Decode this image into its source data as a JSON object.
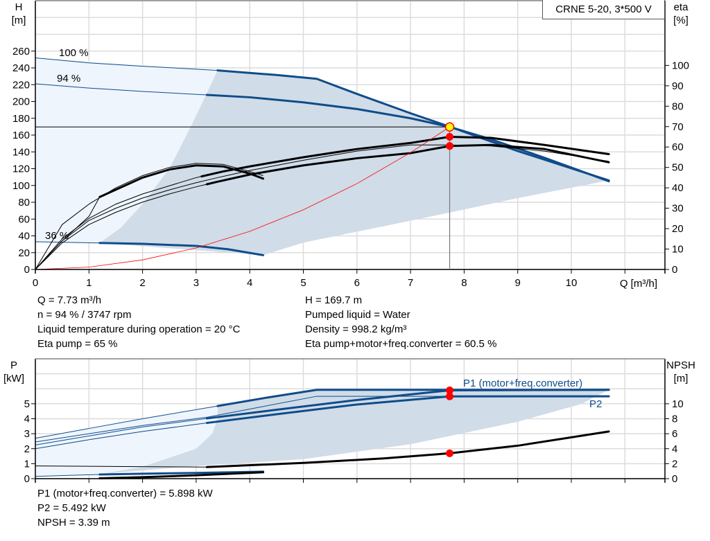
{
  "title": "CRNE 5-20, 3*500 V",
  "colors": {
    "pump_curve": "#0f4c8a",
    "efficiency_curve": "#000000",
    "system_curve": "#ff0000",
    "operating_area": "#d0dce8",
    "extended_area": "#eef5fd",
    "duty_point_fill": "#ffff00",
    "grid": "#dcdcdc"
  },
  "readouts_upper": {
    "q": "Q = 7.73 m³/h",
    "n": "n = 94 % / 3747 rpm",
    "temp": "Liquid temperature during operation = 20 °C",
    "eta_pump": "Eta pump = 65 %",
    "h": "H = 169.7 m",
    "liquid": "Pumped liquid = Water",
    "density": "Density = 998.2 kg/m³",
    "eta_total": "Eta pump+motor+freq.converter = 60.5 %"
  },
  "readouts_lower": {
    "p1": "P1 (motor+freq.converter) = 5.898 kW",
    "p2": "P2 = 5.492 kW",
    "npsh": "NPSH = 3.39 m"
  },
  "chart_data": [
    {
      "type": "line",
      "xlabel": "Q [m³/h]",
      "ylabel": "H\n[m]",
      "y2label": "eta\n[%]",
      "xlim": [
        0,
        11.75
      ],
      "ylim": [
        0,
        320
      ],
      "y2lim": [
        0,
        131.7
      ],
      "x_ticks": [
        "0",
        "1",
        "2",
        "3",
        "4",
        "5",
        "6",
        "7",
        "8",
        "9",
        "10"
      ],
      "y_ticks": [
        "0",
        "20",
        "40",
        "60",
        "80",
        "100",
        "120",
        "140",
        "160",
        "180",
        "200",
        "220",
        "240",
        "260"
      ],
      "y2_ticks": [
        "0",
        "10",
        "20",
        "30",
        "40",
        "50",
        "60",
        "70",
        "80",
        "90",
        "100"
      ],
      "grid": true,
      "speed_labels": [
        "100 %",
        "94 %",
        "36 %"
      ],
      "series": [
        {
          "name": "100 %",
          "axis": "H",
          "kind": "pump",
          "points": [
            [
              0,
              252
            ],
            [
              1,
              246
            ],
            [
              2,
              242
            ],
            [
              3,
              238.5
            ],
            [
              3.4,
              237
            ],
            [
              4.5,
              231.5
            ],
            [
              5.25,
              227
            ],
            [
              6,
              209
            ],
            [
              7,
              186
            ],
            [
              7.73,
              170
            ],
            [
              9,
              141
            ],
            [
              10.7,
              106
            ]
          ],
          "thick_from": 3.4
        },
        {
          "name": "94 %",
          "axis": "H",
          "kind": "pump",
          "points": [
            [
              0,
              221
            ],
            [
              1,
              216
            ],
            [
              2,
              212
            ],
            [
              3,
              208.5
            ],
            [
              4,
              205
            ],
            [
              5,
              199
            ],
            [
              6,
              191
            ],
            [
              7,
              180
            ],
            [
              7.73,
              169.7
            ],
            [
              8.5,
              155
            ],
            [
              9.5,
              133
            ],
            [
              10.7,
              105
            ]
          ],
          "thick_from": 3.2
        },
        {
          "name": "36 %",
          "axis": "H",
          "kind": "pump",
          "points": [
            [
              0,
              33
            ],
            [
              1.2,
              31.5
            ],
            [
              2,
              30.5
            ],
            [
              3,
              28
            ],
            [
              3.6,
              24
            ],
            [
              4.25,
              17
            ]
          ],
          "thick_from": 1.2
        },
        {
          "axis": "eta",
          "kind": "eta",
          "points": [
            [
              0,
              0
            ],
            [
              0.5,
              22
            ],
            [
              1,
              32
            ],
            [
              1.5,
              40
            ],
            [
              2,
              46
            ],
            [
              2.5,
              50
            ],
            [
              3,
              52
            ],
            [
              3.5,
              51.5
            ],
            [
              4,
              48
            ],
            [
              4.25,
              46
            ]
          ],
          "thick_from": 99
        },
        {
          "axis": "eta",
          "kind": "eta",
          "points": [
            [
              0,
              0
            ],
            [
              0.5,
              14
            ],
            [
              1,
              26
            ],
            [
              1.2,
              35.5
            ],
            [
              2,
              45
            ],
            [
              2.5,
              49
            ],
            [
              3,
              51
            ],
            [
              3.5,
              50.5
            ],
            [
              4,
              47
            ],
            [
              4.25,
              44.5
            ]
          ],
          "thick_from": 1.2
        },
        {
          "axis": "eta",
          "kind": "eta",
          "points": [
            [
              0,
              0
            ],
            [
              0.5,
              13
            ],
            [
              1,
              22
            ],
            [
              1.5,
              28
            ],
            [
              2,
              33
            ],
            [
              2.5,
              37
            ],
            [
              3,
              40.5
            ],
            [
              3.4,
              43
            ],
            [
              4,
              46.5
            ],
            [
              5,
              51
            ],
            [
              6,
              54.5
            ],
            [
              7,
              57
            ],
            [
              7.73,
              60.5
            ],
            [
              8.5,
              61
            ],
            [
              9.5,
              59
            ],
            [
              10.7,
              52.5
            ]
          ],
          "thick_from": 3.2
        },
        {
          "axis": "eta",
          "kind": "eta",
          "points": [
            [
              0,
              0
            ],
            [
              0.5,
              14
            ],
            [
              1,
              24
            ],
            [
              1.5,
              30
            ],
            [
              2,
              35
            ],
            [
              2.5,
              39
            ],
            [
              3,
              42.5
            ],
            [
              3.4,
              45
            ],
            [
              4,
              48.5
            ],
            [
              5,
              53.5
            ],
            [
              6,
              58
            ],
            [
              7,
              61
            ],
            [
              7.73,
              61
            ],
            [
              8.5,
              60.5
            ],
            [
              9.5,
              58
            ],
            [
              10.7,
              53
            ]
          ],
          "thick_from": 99
        },
        {
          "axis": "eta",
          "kind": "eta",
          "points": [
            [
              0,
              0
            ],
            [
              0.5,
              15
            ],
            [
              1,
              25
            ],
            [
              1.5,
              32
            ],
            [
              2,
              37
            ],
            [
              2.5,
              41
            ],
            [
              3,
              45
            ],
            [
              3.5,
              48
            ],
            [
              4,
              50.5
            ],
            [
              5,
              55
            ],
            [
              6,
              59
            ],
            [
              7,
              62
            ],
            [
              7.73,
              65
            ],
            [
              8.5,
              64.5
            ],
            [
              9.5,
              61
            ],
            [
              10.7,
              56.5
            ]
          ],
          "thick_from": 3.1
        },
        {
          "name": "system",
          "axis": "H",
          "kind": "system",
          "points": [
            [
              0,
              0
            ],
            [
              1,
              2.8
            ],
            [
              2,
              11.4
            ],
            [
              3,
              25.6
            ],
            [
              4,
              45.4
            ],
            [
              5,
              71
            ],
            [
              6,
              102.2
            ],
            [
              7,
              139.1
            ],
            [
              7.73,
              169.7
            ]
          ]
        }
      ],
      "operating_area": [
        [
          3.4,
          237
        ],
        [
          5.25,
          227
        ],
        [
          7,
          186
        ],
        [
          10.7,
          106
        ],
        [
          9,
          85
        ],
        [
          7,
          58
        ],
        [
          5,
          32
        ],
        [
          4.25,
          17
        ],
        [
          1.2,
          31.5
        ],
        [
          1.6,
          50
        ],
        [
          2,
          78
        ],
        [
          2.5,
          120
        ],
        [
          2.9,
          170
        ],
        [
          3.2,
          210
        ]
      ],
      "extended_area": [
        [
          0,
          252
        ],
        [
          3.4,
          237
        ],
        [
          3.2,
          210
        ],
        [
          2.9,
          170
        ],
        [
          2.5,
          120
        ],
        [
          2,
          78
        ],
        [
          1.6,
          50
        ],
        [
          1.2,
          31.5
        ],
        [
          0,
          33
        ]
      ],
      "duty_point": {
        "q": 7.73,
        "h": 169.7
      },
      "eta_points": [
        65,
        60.5
      ]
    },
    {
      "type": "line",
      "ylabel": "P\n[kW]",
      "y2label": "NPSH\n[m]",
      "xlim": [
        0,
        11.75
      ],
      "ylim": [
        0,
        8
      ],
      "y2lim": [
        0,
        16
      ],
      "y_ticks": [
        "0",
        "1",
        "2",
        "3",
        "4",
        "5"
      ],
      "y2_ticks": [
        "0",
        "2",
        "4",
        "6",
        "8",
        "10"
      ],
      "grid": true,
      "series": [
        {
          "name": "P1 (motor+freq.converter)",
          "axis": "P",
          "kind": "power",
          "points": [
            [
              0,
              2.7
            ],
            [
              1,
              3.35
            ],
            [
              2,
              4.0
            ],
            [
              3.4,
              4.85
            ],
            [
              4.3,
              5.4
            ],
            [
              5.25,
              5.93
            ],
            [
              7.73,
              5.93
            ],
            [
              10.7,
              5.93
            ]
          ],
          "thick_from": 3.4
        },
        {
          "axis": "P",
          "kind": "power",
          "points": [
            [
              0,
              2.45
            ],
            [
              1,
              3.0
            ],
            [
              2,
              3.55
            ],
            [
              3.2,
              4.1
            ],
            [
              5.25,
              5.5
            ],
            [
              7.73,
              5.5
            ],
            [
              10.7,
              5.5
            ]
          ],
          "thick_from": 99
        },
        {
          "axis": "P",
          "kind": "power",
          "points": [
            [
              0,
              2.25
            ],
            [
              1,
              2.85
            ],
            [
              2,
              3.45
            ],
            [
              3.2,
              4.02
            ],
            [
              4.5,
              4.6
            ],
            [
              6,
              5.25
            ],
            [
              7.73,
              5.898
            ],
            [
              10.7,
              5.93
            ]
          ],
          "thick_from": 3.2
        },
        {
          "name": "P2",
          "axis": "P",
          "kind": "power",
          "points": [
            [
              0,
              2.0
            ],
            [
              1,
              2.6
            ],
            [
              2,
              3.15
            ],
            [
              3.2,
              3.72
            ],
            [
              4.5,
              4.3
            ],
            [
              6,
              4.95
            ],
            [
              7.73,
              5.492
            ],
            [
              10.7,
              5.5
            ]
          ],
          "thick_from": 3.2
        },
        {
          "axis": "P",
          "kind": "power",
          "points": [
            [
              0,
              0.15
            ],
            [
              1.2,
              0.28
            ],
            [
              2,
              0.33
            ],
            [
              3,
              0.38
            ],
            [
              4.25,
              0.47
            ]
          ],
          "thick_from": 1.2
        },
        {
          "name": "NPSH",
          "axis": "NPSH",
          "kind": "npsh",
          "points": [
            [
              0,
              1.7
            ],
            [
              3.2,
              1.55
            ],
            [
              5,
              2.1
            ],
            [
              6.5,
              2.7
            ],
            [
              7.73,
              3.39
            ],
            [
              9,
              4.4
            ],
            [
              10.7,
              6.3
            ]
          ],
          "thick_from": 3.2
        },
        {
          "axis": "NPSH",
          "kind": "npsh",
          "points": [
            [
              1.2,
              0.05
            ],
            [
              2,
              0.2
            ],
            [
              3,
              0.45
            ],
            [
              4.25,
              0.85
            ]
          ],
          "thick_from": 1.2
        }
      ],
      "operating_area": [
        [
          3.4,
          4.85
        ],
        [
          5.25,
          5.93
        ],
        [
          10.7,
          5.93
        ],
        [
          10.2,
          5.0
        ],
        [
          9,
          3.8
        ],
        [
          7,
          2.3
        ],
        [
          5,
          1.3
        ],
        [
          3,
          0.85
        ],
        [
          1.2,
          0.3
        ],
        [
          2,
          0.8
        ],
        [
          3,
          2.0
        ],
        [
          3.3,
          3.0
        ],
        [
          3.4,
          4.0
        ]
      ],
      "extended_area": [
        [
          0,
          2.7
        ],
        [
          3.4,
          4.85
        ],
        [
          3.4,
          4.0
        ],
        [
          3.3,
          3.0
        ],
        [
          3,
          2.0
        ],
        [
          2,
          0.8
        ],
        [
          1.2,
          0.3
        ],
        [
          0,
          0.15
        ]
      ],
      "duty_points": {
        "p1": 5.898,
        "p2": 5.492,
        "npsh": 3.39
      }
    }
  ]
}
